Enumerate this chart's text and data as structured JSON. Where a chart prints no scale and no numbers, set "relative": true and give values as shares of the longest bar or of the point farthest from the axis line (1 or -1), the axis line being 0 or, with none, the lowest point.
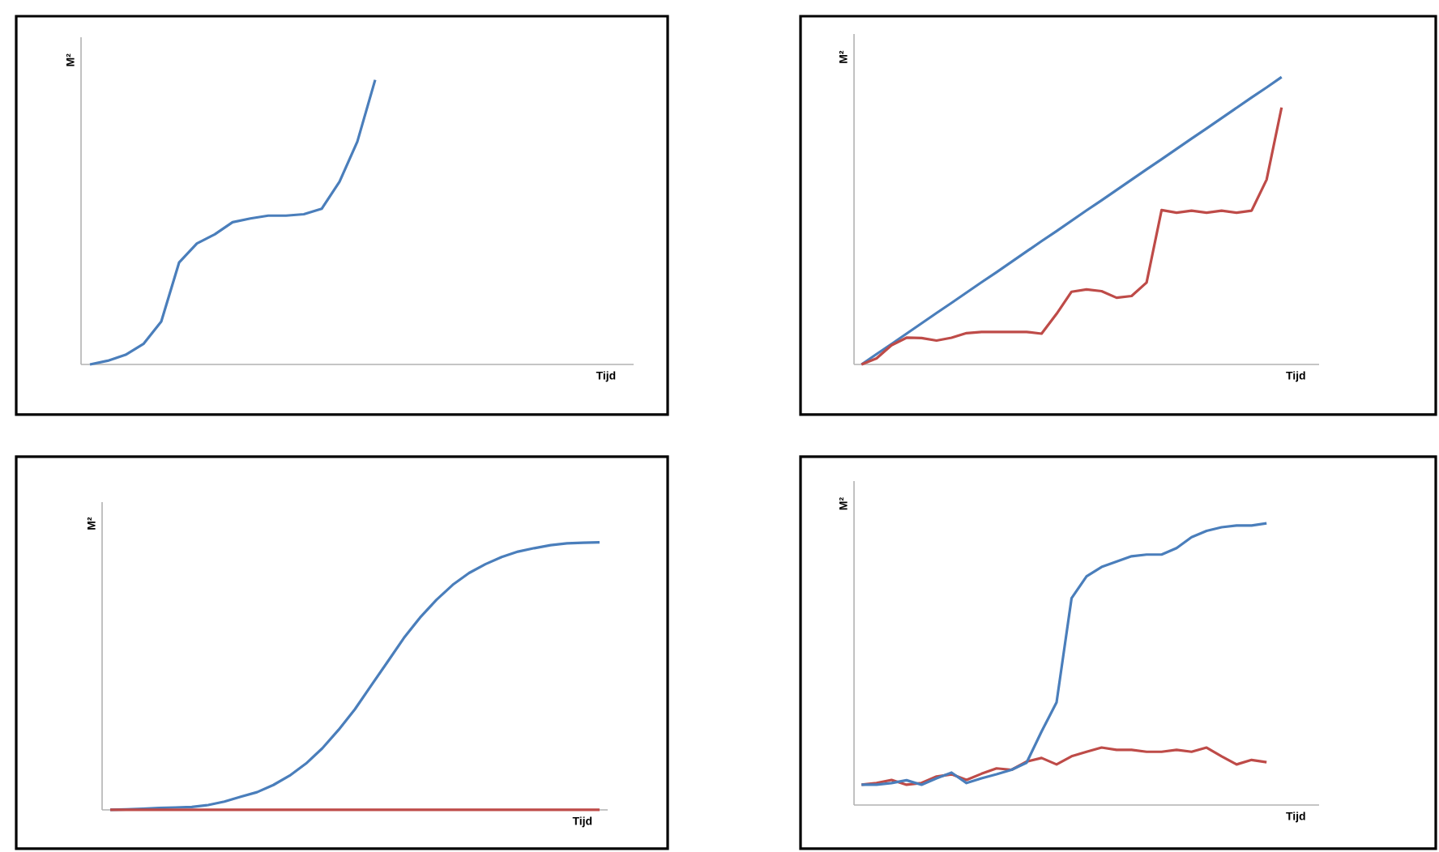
{
  "chart_data": [
    {
      "type": "line",
      "relative": true,
      "ylabel": "M²",
      "xlabel": "Tijd",
      "categories": [
        null,
        null,
        null,
        null,
        null,
        null,
        null,
        null,
        null,
        null,
        null,
        null,
        null,
        null,
        null,
        null,
        null,
        null,
        null,
        null,
        null,
        null,
        null,
        null,
        null,
        null,
        null,
        null,
        null,
        null,
        null
      ],
      "series": [
        {
          "color": "#4a7ebb",
          "values": [
            0,
            0.013,
            0.034,
            0.072,
            0.151,
            0.358,
            0.425,
            0.457,
            0.5,
            0.513,
            0.523,
            0.523,
            0.528,
            0.547,
            0.642,
            0.783,
            1,
            null,
            null,
            null,
            null,
            null,
            null,
            null,
            null,
            null,
            null,
            null,
            null,
            null,
            null
          ]
        }
      ]
    },
    {
      "type": "line",
      "relative": true,
      "ylabel": "M²",
      "xlabel": "Tijd",
      "categories": [
        null,
        null,
        null,
        null,
        null,
        null,
        null,
        null,
        null,
        null,
        null,
        null,
        null,
        null,
        null,
        null,
        null,
        null,
        null,
        null,
        null,
        null,
        null,
        null,
        null,
        null,
        null,
        null,
        null,
        null,
        null
      ],
      "series": [
        {
          "color": "#4a7ebb",
          "values": [
            0,
            0.036,
            0.071,
            0.107,
            0.143,
            0.179,
            0.214,
            0.25,
            0.286,
            0.321,
            0.357,
            0.393,
            0.429,
            0.464,
            0.5,
            0.536,
            0.571,
            0.607,
            0.643,
            0.679,
            0.714,
            0.75,
            0.786,
            0.821,
            0.857,
            0.893,
            0.929,
            0.964,
            1,
            null,
            null
          ]
        },
        {
          "color": "#be4b48",
          "values": [
            0,
            0.021,
            0.067,
            0.093,
            0.092,
            0.083,
            0.093,
            0.109,
            0.113,
            0.113,
            0.113,
            0.113,
            0.107,
            0.176,
            0.253,
            0.261,
            0.255,
            0.232,
            0.238,
            0.285,
            0.537,
            0.528,
            0.535,
            0.528,
            0.535,
            0.528,
            0.535,
            0.643,
            0.894,
            null,
            null
          ]
        }
      ]
    },
    {
      "type": "line",
      "relative": true,
      "ylabel": "M²",
      "xlabel": "Tijd",
      "categories": [
        null,
        null,
        null,
        null,
        null,
        null,
        null,
        null,
        null,
        null,
        null,
        null,
        null,
        null,
        null,
        null,
        null,
        null,
        null,
        null,
        null,
        null,
        null,
        null,
        null,
        null,
        null,
        null,
        null,
        null,
        null
      ],
      "series": [
        {
          "color": "#4a7ebb",
          "values": [
            0,
            0.002,
            0.004,
            0.007,
            0.009,
            0.011,
            0.018,
            0.031,
            0.049,
            0.066,
            0.093,
            0.128,
            0.173,
            0.23,
            0.299,
            0.376,
            0.465,
            0.553,
            0.642,
            0.719,
            0.785,
            0.841,
            0.885,
            0.918,
            0.945,
            0.965,
            0.978,
            0.989,
            0.996,
            0.998,
            1
          ]
        },
        {
          "color": "#be4b48",
          "values": [
            0,
            0,
            0,
            0,
            0,
            0,
            0,
            0,
            0,
            0,
            0,
            0,
            0,
            0,
            0,
            0,
            0,
            0,
            0,
            0,
            0,
            0,
            0,
            0,
            0,
            0,
            0,
            0,
            0,
            0,
            0
          ]
        }
      ]
    },
    {
      "type": "line",
      "relative": true,
      "ylabel": "M²",
      "xlabel": "Tijd",
      "categories": [
        null,
        null,
        null,
        null,
        null,
        null,
        null,
        null,
        null,
        null,
        null,
        null,
        null,
        null,
        null,
        null,
        null,
        null,
        null,
        null,
        null,
        null,
        null,
        null,
        null,
        null,
        null,
        null,
        null,
        null,
        null
      ],
      "series": [
        {
          "color": "#be4b48",
          "values": [
            0.072,
            0.078,
            0.089,
            0.072,
            0.078,
            0.101,
            0.109,
            0.089,
            0.111,
            0.13,
            0.125,
            0.154,
            0.167,
            0.144,
            0.173,
            0.189,
            0.204,
            0.196,
            0.196,
            0.189,
            0.189,
            0.196,
            0.189,
            0.204,
            0.173,
            0.144,
            0.16,
            0.152,
            null,
            null,
            null
          ]
        },
        {
          "color": "#4a7ebb",
          "values": [
            0.072,
            0.072,
            0.078,
            0.088,
            0.072,
            0.095,
            0.115,
            0.078,
            0.095,
            0.109,
            0.125,
            0.15,
            0.261,
            0.364,
            0.734,
            0.812,
            0.845,
            0.864,
            0.883,
            0.889,
            0.889,
            0.912,
            0.951,
            0.973,
            0.986,
            0.992,
            0.992,
            1,
            null,
            null,
            null
          ]
        }
      ]
    }
  ]
}
